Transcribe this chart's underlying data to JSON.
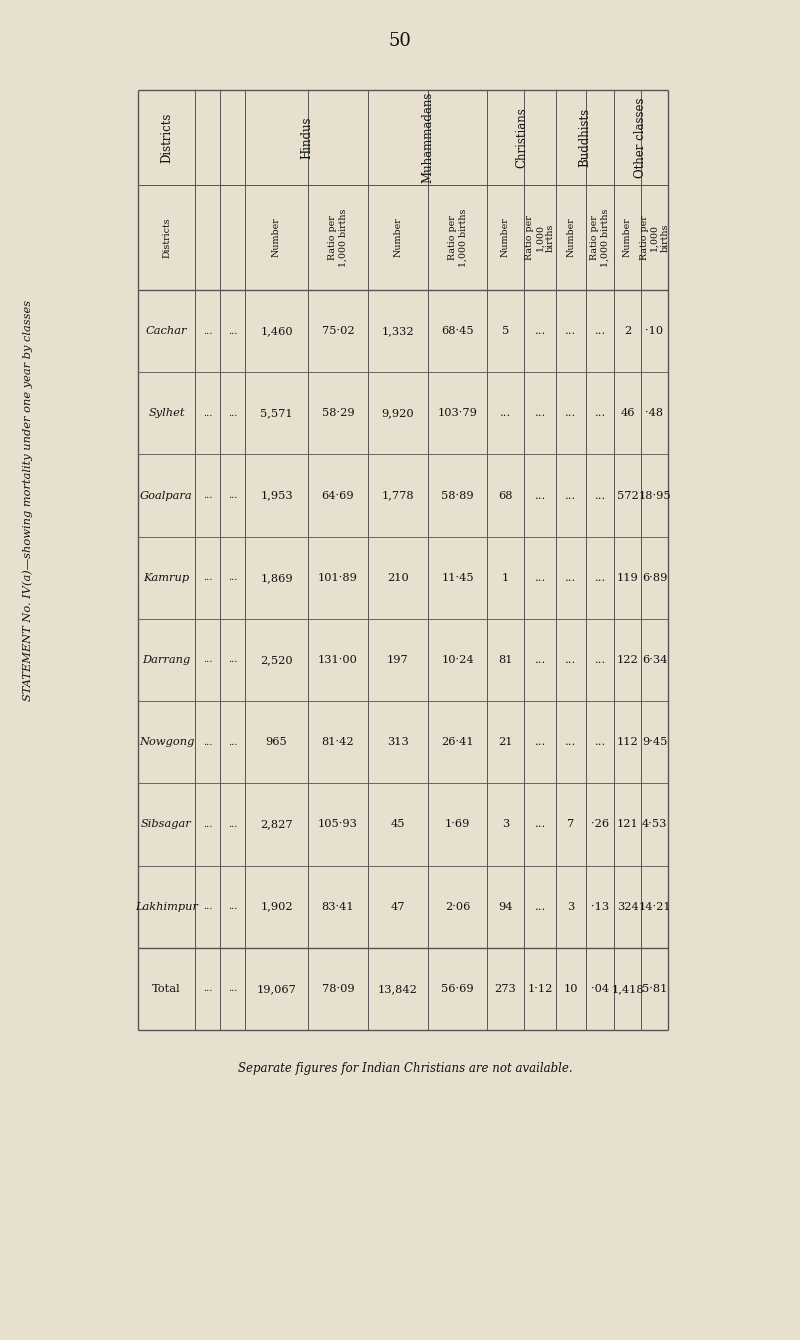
{
  "page_number": "50",
  "title": "STATEMENT No. IV(a)—showing mortality under one year by classes",
  "footnote": "Separate figures for Indian Christians are not available.",
  "districts": [
    "Cachar",
    "Sylhet",
    "Goalpara",
    "Kamrup",
    "Darrang",
    "Nowgong",
    "Sibsagar",
    "Lakhimpur",
    "Total"
  ],
  "hindus_number": [
    "1,460",
    "5,571",
    "1,953",
    "1,869",
    "2,520",
    "965",
    "2,827",
    "1,902",
    "19,067"
  ],
  "hindus_ratio": [
    "75·02",
    "58·29",
    "64·69",
    "101·89",
    "131·00",
    "81·42",
    "105·93",
    "83·41",
    "78·09"
  ],
  "muhammadans_number": [
    "1,332",
    "9,920",
    "1,778",
    "210",
    "197",
    "313",
    "45",
    "47",
    "13,842"
  ],
  "muhammadans_ratio": [
    "68·45",
    "103·79",
    "58·89",
    "11·45",
    "10·24",
    "26·41",
    "1·69",
    "2·06",
    "56·69"
  ],
  "christians_number": [
    "5",
    "...",
    "68",
    "1",
    "81",
    "21",
    "3",
    "94",
    "273"
  ],
  "christians_ratio": [
    "...",
    "...",
    "...",
    "...",
    "...",
    "...",
    "...",
    "...",
    "1·12"
  ],
  "buddhists_number": [
    "...",
    "...",
    "...",
    "...",
    "...",
    "...",
    "7",
    "3",
    "10"
  ],
  "buddhists_ratio": [
    "...",
    "...",
    "...",
    "...",
    "...",
    "...",
    "·26",
    "·13",
    "·04"
  ],
  "others_number": [
    "2",
    "46",
    "572",
    "119",
    "122",
    "112",
    "121",
    "324",
    "1,418"
  ],
  "others_ratio": [
    "·10",
    "·48",
    "18·95",
    "6·89",
    "6·34",
    "9·45",
    "4·53",
    "14·21",
    "5·81"
  ],
  "bg_color": "#e8e0ce",
  "text_color": "#111111",
  "dots_col1": [
    "...",
    "...",
    "...",
    "...",
    "...",
    "...",
    "...",
    "...",
    "..."
  ],
  "dots_col2": [
    "...",
    "...",
    "...",
    "...",
    "...",
    "...",
    "...",
    "...",
    "..."
  ]
}
